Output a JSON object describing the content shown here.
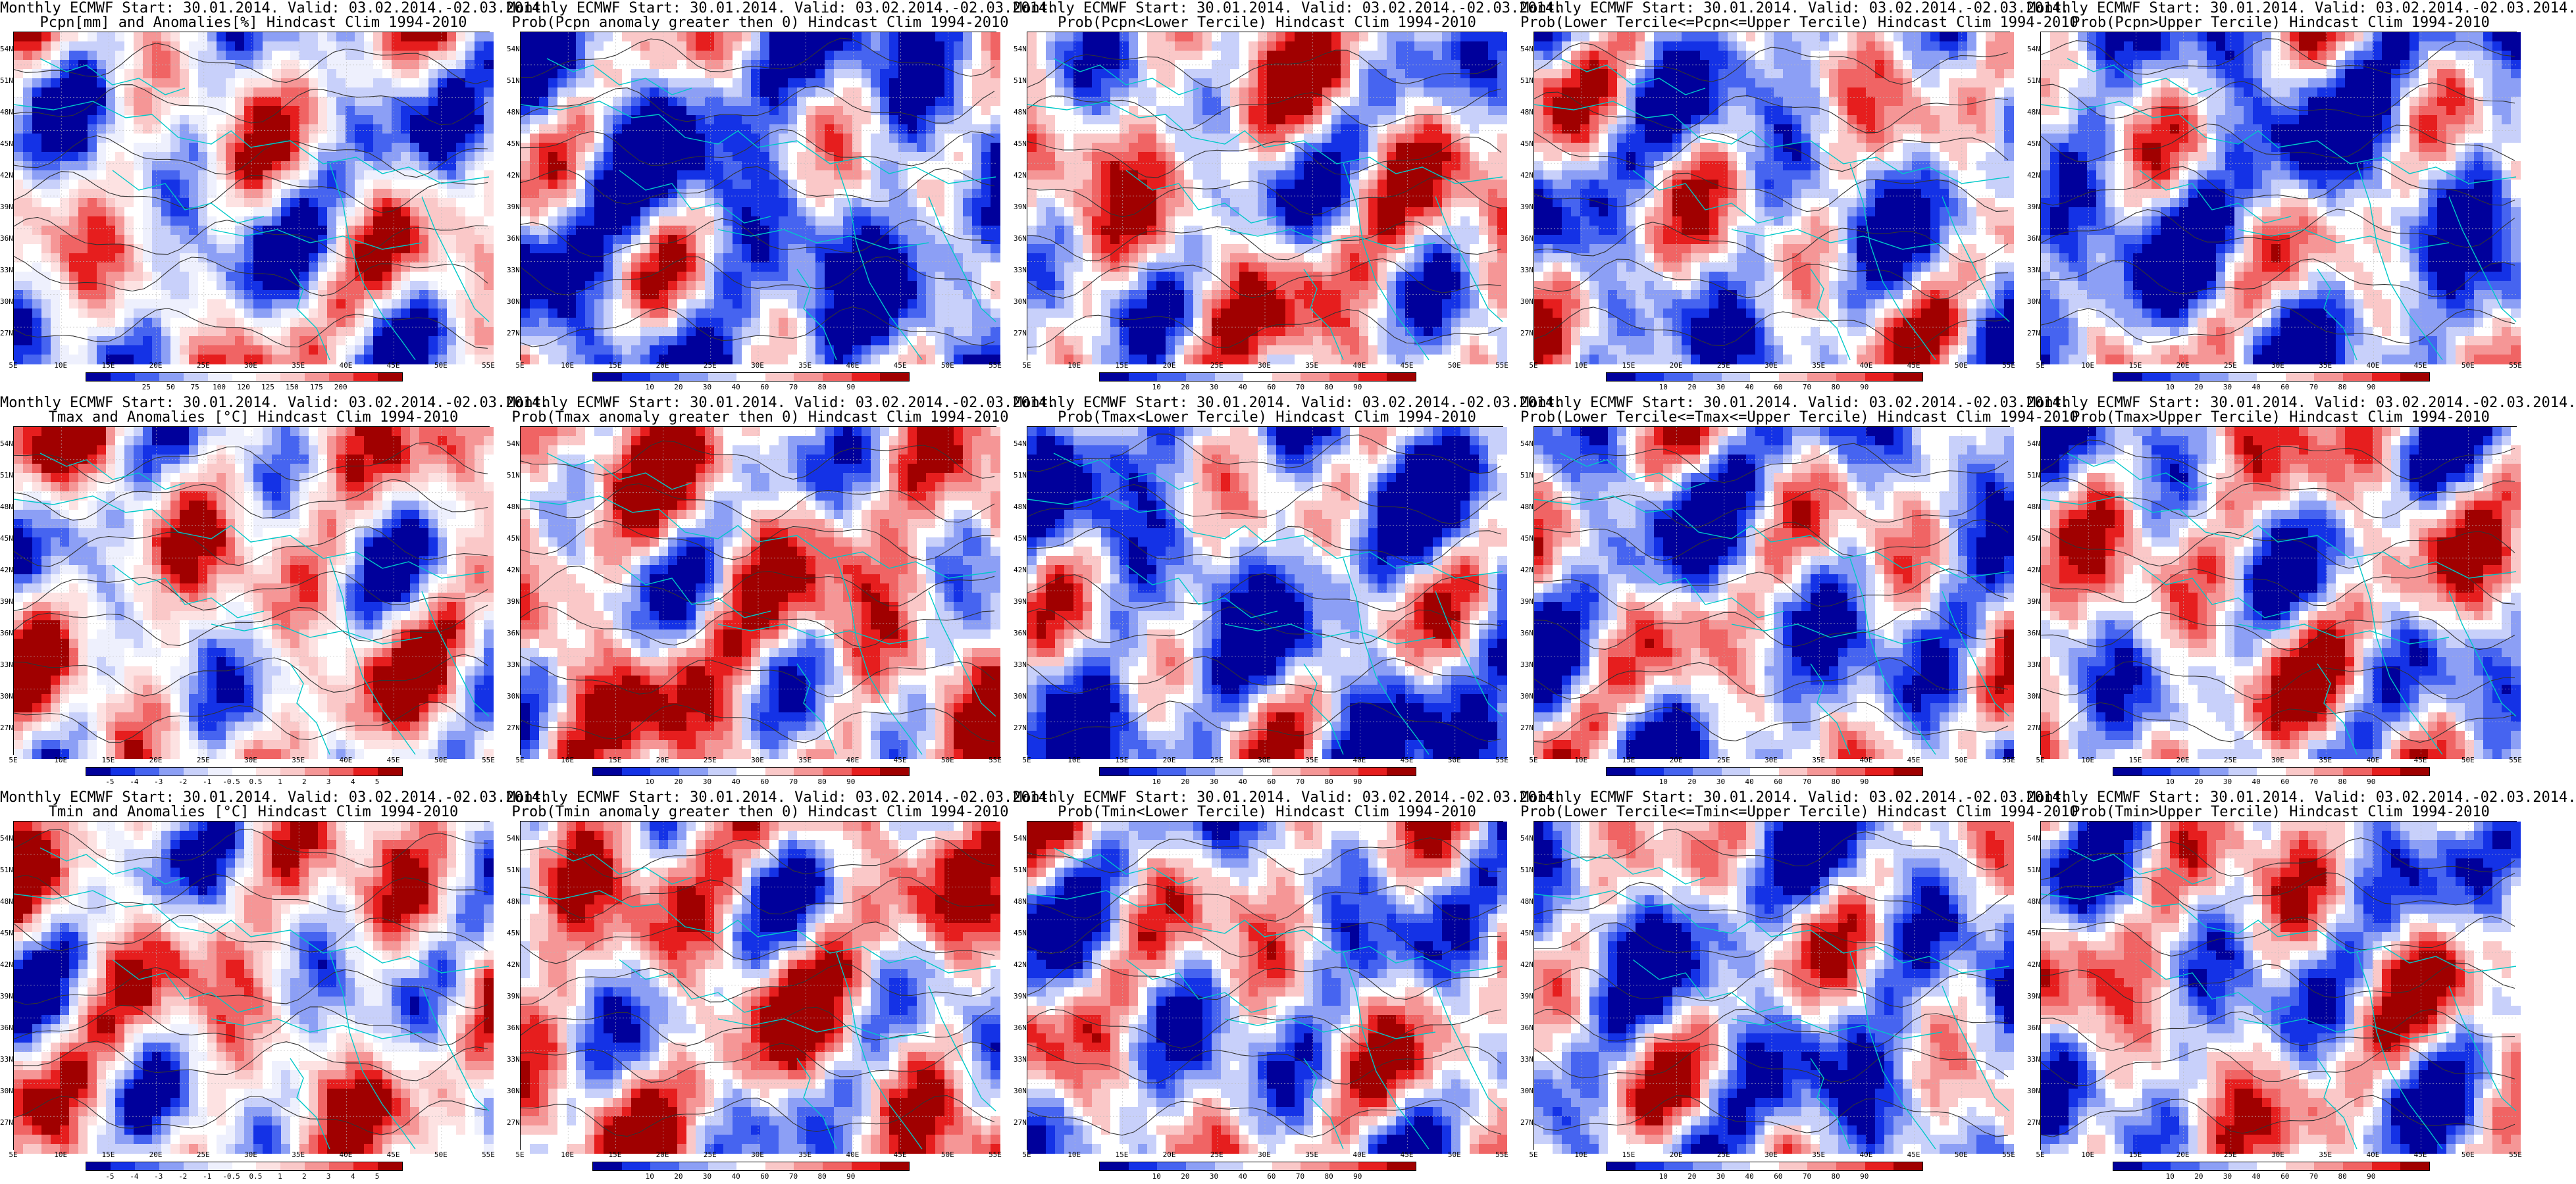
{
  "figure": {
    "lat_labels": [
      "54N",
      "51N",
      "48N",
      "45N",
      "42N",
      "39N",
      "36N",
      "33N",
      "30N",
      "27N"
    ],
    "lon_labels": [
      "5E",
      "10E",
      "15E",
      "20E",
      "25E",
      "30E",
      "35E",
      "40E",
      "45E",
      "50E",
      "55E"
    ],
    "panels": [
      {
        "row": 0,
        "col": 0,
        "title1": "Monthly ECMWF Start: 30.01.2014. Valid: 03.02.2014.-02.03.2014.",
        "title2": "Pcpn[mm] and Anomalies[%] Hindcast Clim 1994-2010",
        "scheme": "anom",
        "bias": 0.45,
        "ticks": [
          "25",
          "50",
          "75",
          "100",
          "120",
          "125",
          "150",
          "175",
          "200"
        ]
      },
      {
        "row": 0,
        "col": 1,
        "title1": "Monthly ECMWF Start: 30.01.2014. Valid: 03.02.2014.-02.03.2014.",
        "title2": "Prob(Pcpn anomaly greater then 0) Hindcast Clim 1994-2010",
        "scheme": "prob",
        "bias": 0.25,
        "ticks": [
          "10",
          "20",
          "30",
          "40",
          "60",
          "70",
          "80",
          "90"
        ]
      },
      {
        "row": 0,
        "col": 2,
        "title1": "Monthly ECMWF Start: 30.01.2014. Valid: 03.02.2014.-02.03.2014.",
        "title2": "Prob(Pcpn<Lower Tercile) Hindcast Clim 1994-2010",
        "scheme": "prob",
        "bias": 0.55,
        "ticks": [
          "10",
          "20",
          "30",
          "40",
          "60",
          "70",
          "80",
          "90"
        ]
      },
      {
        "row": 0,
        "col": 3,
        "title1": "Monthly ECMWF Start: 30.01.2014. Valid: 03.02.2014.-02.03.2014.",
        "title2": "Prob(Lower Tercile<=Pcpn<=Upper Tercile) Hindcast Clim 1994-2010",
        "scheme": "prob",
        "bias": 0.4,
        "ticks": [
          "10",
          "20",
          "30",
          "40",
          "60",
          "70",
          "80",
          "90"
        ]
      },
      {
        "row": 0,
        "col": 4,
        "title1": "Monthly ECMWF Start: 30.01.2014. Valid: 03.02.2014.-02.03.2014.",
        "title2": "Prob(Pcpn>Upper Tercile) Hindcast Clim 1994-2010",
        "scheme": "prob",
        "bias": 0.3,
        "ticks": [
          "10",
          "20",
          "30",
          "40",
          "60",
          "70",
          "80",
          "90"
        ]
      },
      {
        "row": 1,
        "col": 0,
        "title1": "Monthly ECMWF Start: 30.01.2014. Valid: 03.02.2014.-02.03.2014.",
        "title2": "Tmax and Anomalies [°C] Hindcast Clim 1994-2010",
        "scheme": "anom",
        "bias": 0.55,
        "ticks": [
          "-5",
          "-4",
          "-3",
          "-2",
          "-1",
          "-0.5",
          "0.5",
          "1",
          "2",
          "3",
          "4",
          "5"
        ]
      },
      {
        "row": 1,
        "col": 1,
        "title1": "Monthly ECMWF Start: 30.01.2014. Valid: 03.02.2014.-02.03.2014.",
        "title2": "Prob(Tmax anomaly greater then 0) Hindcast Clim 1994-2010",
        "scheme": "prob",
        "bias": 0.62,
        "ticks": [
          "10",
          "20",
          "30",
          "40",
          "60",
          "70",
          "80",
          "90"
        ]
      },
      {
        "row": 1,
        "col": 2,
        "title1": "Monthly ECMWF Start: 30.01.2014. Valid: 03.02.2014.-02.03.2014.",
        "title2": "Prob(Tmax<Lower Tercile) Hindcast Clim 1994-2010",
        "scheme": "prob",
        "bias": 0.3,
        "ticks": [
          "10",
          "20",
          "30",
          "40",
          "60",
          "70",
          "80",
          "90"
        ]
      },
      {
        "row": 1,
        "col": 3,
        "title1": "Monthly ECMWF Start: 30.01.2014. Valid: 03.02.2014.-02.03.2014.",
        "title2": "Prob(Lower Tercile<=Tmax<=Upper Tercile) Hindcast Clim 1994-2010",
        "scheme": "prob",
        "bias": 0.38,
        "ticks": [
          "10",
          "20",
          "30",
          "40",
          "60",
          "70",
          "80",
          "90"
        ]
      },
      {
        "row": 1,
        "col": 4,
        "title1": "Monthly ECMWF Start: 30.01.2014. Valid: 03.02.2014.-02.03.2014.",
        "title2": "Prob(Tmax>Upper Tercile) Hindcast Clim 1994-2010",
        "scheme": "prob",
        "bias": 0.5,
        "ticks": [
          "10",
          "20",
          "30",
          "40",
          "60",
          "70",
          "80",
          "90"
        ]
      },
      {
        "row": 2,
        "col": 0,
        "title1": "Monthly ECMWF Start: 30.01.2014. Valid: 03.02.2014.-02.03.2014.",
        "title2": "Tmin and Anomalies [°C] Hindcast Clim 1994-2010",
        "scheme": "anom",
        "bias": 0.55,
        "ticks": [
          "-5",
          "-4",
          "-3",
          "-2",
          "-1",
          "-0.5",
          "0.5",
          "1",
          "2",
          "3",
          "4",
          "5"
        ]
      },
      {
        "row": 2,
        "col": 1,
        "title1": "Monthly ECMWF Start: 30.01.2014. Valid: 03.02.2014.-02.03.2014.",
        "title2": "Prob(Tmin anomaly greater then 0) Hindcast Clim 1994-2010",
        "scheme": "prob",
        "bias": 0.6,
        "ticks": [
          "10",
          "20",
          "30",
          "40",
          "60",
          "70",
          "80",
          "90"
        ]
      },
      {
        "row": 2,
        "col": 2,
        "title1": "Monthly ECMWF Start: 30.01.2014. Valid: 03.02.2014.-02.03.2014.",
        "title2": "Prob(Tmin<Lower Tercile) Hindcast Clim 1994-2010",
        "scheme": "prob",
        "bias": 0.45,
        "ticks": [
          "10",
          "20",
          "30",
          "40",
          "60",
          "70",
          "80",
          "90"
        ]
      },
      {
        "row": 2,
        "col": 3,
        "title1": "Monthly ECMWF Start: 30.01.2014. Valid: 03.02.2014.-02.03.2014.",
        "title2": "Prob(Lower Tercile<=Tmin<=Upper Tercile) Hindcast Clim 1994-2010",
        "scheme": "prob",
        "bias": 0.35,
        "ticks": [
          "10",
          "20",
          "30",
          "40",
          "60",
          "70",
          "80",
          "90"
        ]
      },
      {
        "row": 2,
        "col": 4,
        "title1": "Monthly ECMWF Start: 30.01.2014. Valid: 03.02.2014.-02.03.2014.",
        "title2": "Prob(Tmin>Upper Tercile) Hindcast Clim 1994-2010",
        "scheme": "prob",
        "bias": 0.48,
        "ticks": [
          "10",
          "20",
          "30",
          "40",
          "60",
          "70",
          "80",
          "90"
        ]
      }
    ],
    "palettes": {
      "prob": [
        "#00009b",
        "#1432e6",
        "#4664f0",
        "#8c9ff5",
        "#c8d0fa",
        "#ffffff",
        "#fac8c8",
        "#f59696",
        "#f06464",
        "#e61e1e",
        "#a00000"
      ],
      "anom": [
        "#00009b",
        "#1432e6",
        "#4664f0",
        "#8c9ff5",
        "#c8d0fa",
        "#eef0fd",
        "#ffffff",
        "#fde2e2",
        "#fac8c8",
        "#f59696",
        "#f06464",
        "#e61e1e",
        "#a00000"
      ]
    },
    "coast_color": "#00c8c8",
    "contour_color": "#333333"
  }
}
